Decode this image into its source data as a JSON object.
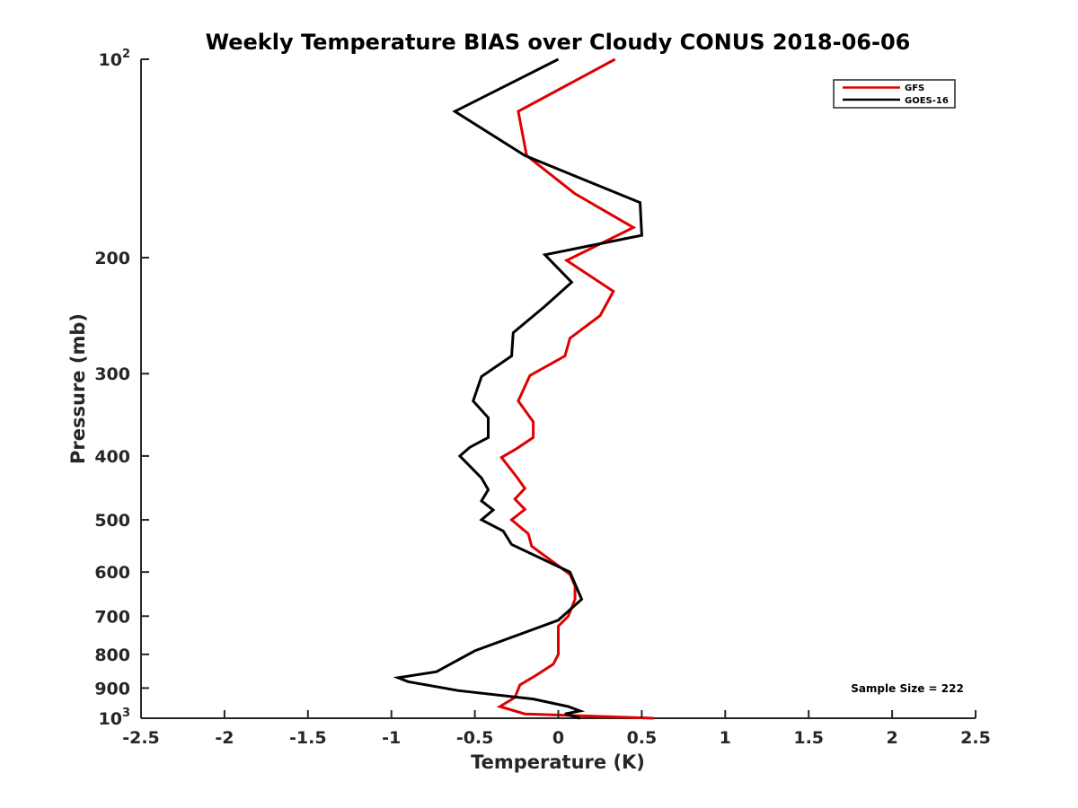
{
  "chart_data": {
    "type": "line",
    "title": "Weekly Temperature BIAS over Cloudy CONUS 2018-06-06",
    "xlabel": "Temperature (K)",
    "ylabel": "Pressure (mb)",
    "xlim": [
      -2.5,
      2.5
    ],
    "ylim": [
      100,
      1000
    ],
    "y_scale": "log",
    "y_reversed": true,
    "x_ticks": [
      "-2.5",
      "-2",
      "-1.5",
      "-1",
      "-0.5",
      "0",
      "0.5",
      "1",
      "1.5",
      "2",
      "2.5"
    ],
    "y_ticks": [
      {
        "value": 100,
        "base": "10",
        "exp": "2"
      },
      {
        "value": 200,
        "label": "200"
      },
      {
        "value": 300,
        "label": "300"
      },
      {
        "value": 400,
        "label": "400"
      },
      {
        "value": 500,
        "label": "500"
      },
      {
        "value": 600,
        "label": "600"
      },
      {
        "value": 700,
        "label": "700"
      },
      {
        "value": 800,
        "label": "800"
      },
      {
        "value": 900,
        "label": "900"
      },
      {
        "value": 1000,
        "base": "10",
        "exp": "3"
      }
    ],
    "grid": false,
    "legend_position": "top-right",
    "annotation": "Sample Size = 222",
    "series": [
      {
        "name": "GFS",
        "color": "#e00000",
        "points": [
          [
            0.34,
            100
          ],
          [
            -0.24,
            120
          ],
          [
            -0.19,
            140
          ],
          [
            0.1,
            160
          ],
          [
            0.45,
            180
          ],
          [
            0.05,
            202
          ],
          [
            0.33,
            225
          ],
          [
            0.25,
            245
          ],
          [
            0.07,
            265
          ],
          [
            0.04,
            282
          ],
          [
            -0.17,
            302
          ],
          [
            -0.24,
            330
          ],
          [
            -0.15,
            355
          ],
          [
            -0.15,
            375
          ],
          [
            -0.25,
            390
          ],
          [
            -0.34,
            402
          ],
          [
            -0.25,
            430
          ],
          [
            -0.2,
            448
          ],
          [
            -0.26,
            465
          ],
          [
            -0.2,
            482
          ],
          [
            -0.28,
            500
          ],
          [
            -0.18,
            525
          ],
          [
            -0.16,
            548
          ],
          [
            0.07,
            605
          ],
          [
            0.1,
            630
          ],
          [
            0.1,
            660
          ],
          [
            0.06,
            700
          ],
          [
            0.0,
            725
          ],
          [
            0.0,
            760
          ],
          [
            0.0,
            800
          ],
          [
            -0.03,
            828
          ],
          [
            -0.13,
            860
          ],
          [
            -0.23,
            890
          ],
          [
            -0.26,
            930
          ],
          [
            -0.35,
            960
          ],
          [
            -0.2,
            985
          ],
          [
            0.57,
            1000
          ]
        ]
      },
      {
        "name": "GOES-16",
        "color": "#000000",
        "points": [
          [
            0.0,
            100
          ],
          [
            -0.62,
            120
          ],
          [
            -0.2,
            140
          ],
          [
            0.49,
            165
          ],
          [
            0.5,
            185
          ],
          [
            -0.08,
            198
          ],
          [
            0.08,
            218
          ],
          [
            -0.08,
            237
          ],
          [
            -0.27,
            260
          ],
          [
            -0.28,
            282
          ],
          [
            -0.46,
            303
          ],
          [
            -0.51,
            330
          ],
          [
            -0.42,
            350
          ],
          [
            -0.42,
            375
          ],
          [
            -0.53,
            388
          ],
          [
            -0.59,
            400
          ],
          [
            -0.46,
            432
          ],
          [
            -0.42,
            450
          ],
          [
            -0.46,
            468
          ],
          [
            -0.39,
            483
          ],
          [
            -0.46,
            500
          ],
          [
            -0.33,
            520
          ],
          [
            -0.28,
            545
          ],
          [
            0.07,
            600
          ],
          [
            0.14,
            660
          ],
          [
            0.0,
            710
          ],
          [
            -0.5,
            790
          ],
          [
            -0.73,
            850
          ],
          [
            -0.96,
            868
          ],
          [
            -0.9,
            880
          ],
          [
            -0.6,
            908
          ],
          [
            -0.15,
            935
          ],
          [
            0.06,
            960
          ],
          [
            0.13,
            975
          ],
          [
            0.04,
            985
          ],
          [
            0.13,
            1000
          ]
        ]
      }
    ]
  }
}
